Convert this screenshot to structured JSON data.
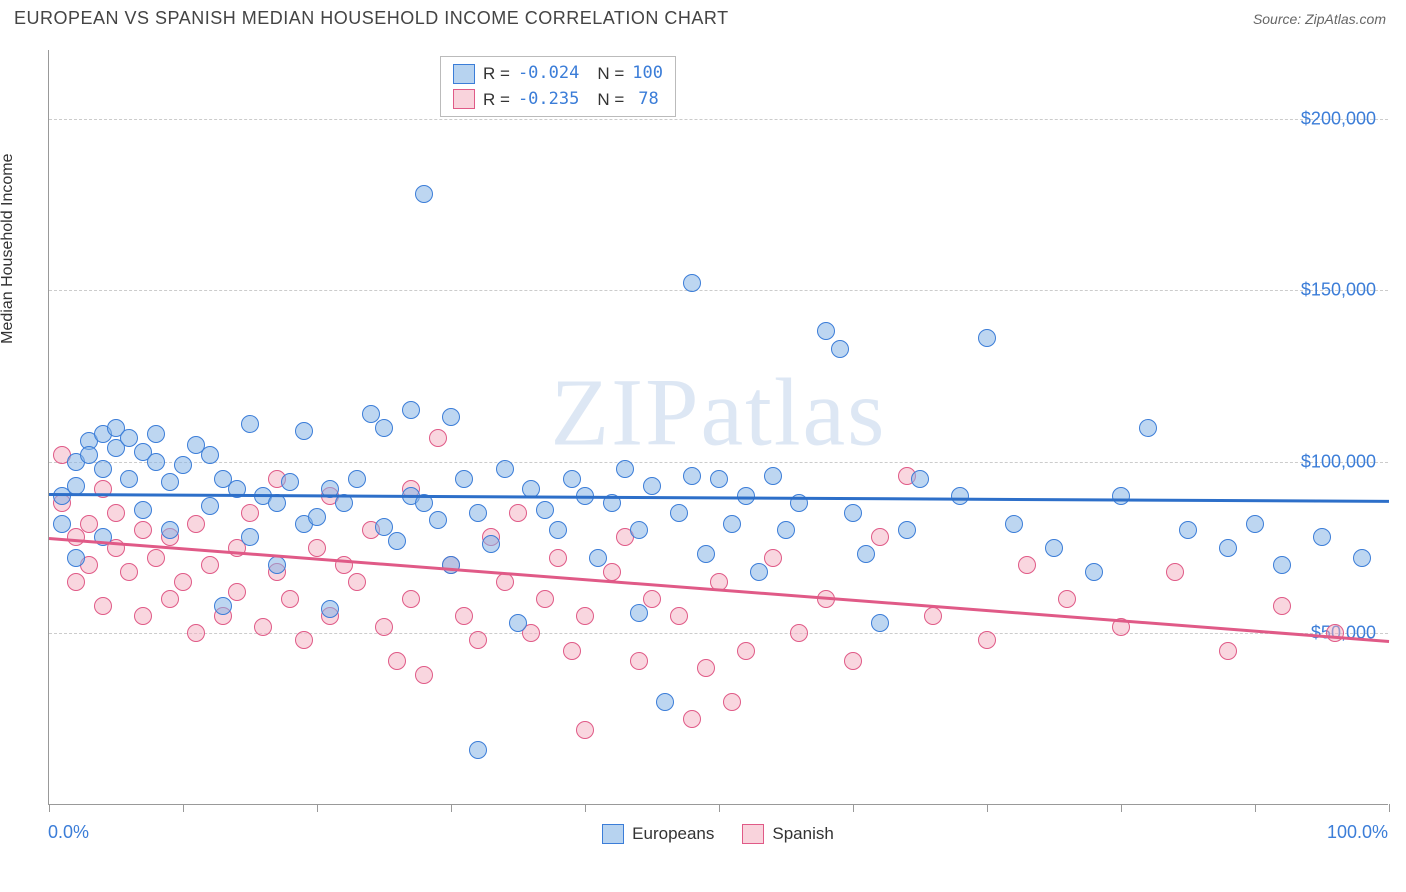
{
  "title": "EUROPEAN VS SPANISH MEDIAN HOUSEHOLD INCOME CORRELATION CHART",
  "source": "Source: ZipAtlas.com",
  "watermark": "ZIPatlas",
  "yaxis_title": "Median Household Income",
  "chart": {
    "type": "scatter",
    "xlim": [
      0,
      100
    ],
    "ylim": [
      0,
      220000
    ],
    "x_label_min": "0.0%",
    "x_label_max": "100.0%",
    "y_ticks": [
      50000,
      100000,
      150000,
      200000
    ],
    "y_tick_labels": [
      "$50,000",
      "$100,000",
      "$150,000",
      "$200,000"
    ],
    "x_tick_positions": [
      0,
      10,
      20,
      30,
      40,
      50,
      60,
      70,
      80,
      90,
      100
    ],
    "grid_color": "#cccccc",
    "background": "#ffffff",
    "marker_radius": 9,
    "series": [
      {
        "name": "Europeans",
        "color_fill": "rgba(135,181,230,0.55)",
        "color_stroke": "#3b7dd8",
        "R": "-0.024",
        "N": "100",
        "trend": {
          "y_at_x0": 91000,
          "y_at_x100": 89000
        },
        "points": [
          [
            1,
            82000
          ],
          [
            1,
            90000
          ],
          [
            2,
            93000
          ],
          [
            2,
            100000
          ],
          [
            2,
            72000
          ],
          [
            3,
            106000
          ],
          [
            3,
            102000
          ],
          [
            4,
            108000
          ],
          [
            4,
            98000
          ],
          [
            4,
            78000
          ],
          [
            5,
            110000
          ],
          [
            5,
            104000
          ],
          [
            6,
            107000
          ],
          [
            6,
            95000
          ],
          [
            7,
            103000
          ],
          [
            7,
            86000
          ],
          [
            8,
            100000
          ],
          [
            8,
            108000
          ],
          [
            9,
            94000
          ],
          [
            9,
            80000
          ],
          [
            10,
            99000
          ],
          [
            11,
            105000
          ],
          [
            12,
            102000
          ],
          [
            12,
            87000
          ],
          [
            13,
            95000
          ],
          [
            13,
            58000
          ],
          [
            14,
            92000
          ],
          [
            15,
            111000
          ],
          [
            15,
            78000
          ],
          [
            16,
            90000
          ],
          [
            17,
            88000
          ],
          [
            17,
            70000
          ],
          [
            18,
            94000
          ],
          [
            19,
            109000
          ],
          [
            19,
            82000
          ],
          [
            20,
            84000
          ],
          [
            21,
            92000
          ],
          [
            21,
            57000
          ],
          [
            22,
            88000
          ],
          [
            23,
            95000
          ],
          [
            24,
            114000
          ],
          [
            25,
            110000
          ],
          [
            25,
            81000
          ],
          [
            26,
            77000
          ],
          [
            27,
            115000
          ],
          [
            27,
            90000
          ],
          [
            28,
            178000
          ],
          [
            28,
            88000
          ],
          [
            29,
            83000
          ],
          [
            30,
            113000
          ],
          [
            30,
            70000
          ],
          [
            31,
            95000
          ],
          [
            32,
            85000
          ],
          [
            32,
            16000
          ],
          [
            33,
            76000
          ],
          [
            34,
            98000
          ],
          [
            35,
            53000
          ],
          [
            36,
            92000
          ],
          [
            37,
            86000
          ],
          [
            38,
            80000
          ],
          [
            39,
            95000
          ],
          [
            40,
            90000
          ],
          [
            41,
            72000
          ],
          [
            42,
            88000
          ],
          [
            43,
            98000
          ],
          [
            44,
            80000
          ],
          [
            44,
            56000
          ],
          [
            45,
            93000
          ],
          [
            46,
            30000
          ],
          [
            47,
            85000
          ],
          [
            48,
            96000
          ],
          [
            48,
            152000
          ],
          [
            49,
            73000
          ],
          [
            50,
            95000
          ],
          [
            51,
            82000
          ],
          [
            52,
            90000
          ],
          [
            53,
            68000
          ],
          [
            54,
            96000
          ],
          [
            55,
            80000
          ],
          [
            56,
            88000
          ],
          [
            58,
            138000
          ],
          [
            59,
            133000
          ],
          [
            60,
            85000
          ],
          [
            61,
            73000
          ],
          [
            62,
            53000
          ],
          [
            64,
            80000
          ],
          [
            65,
            95000
          ],
          [
            68,
            90000
          ],
          [
            70,
            136000
          ],
          [
            72,
            82000
          ],
          [
            75,
            75000
          ],
          [
            78,
            68000
          ],
          [
            80,
            90000
          ],
          [
            82,
            110000
          ],
          [
            85,
            80000
          ],
          [
            88,
            75000
          ],
          [
            90,
            82000
          ],
          [
            92,
            70000
          ],
          [
            95,
            78000
          ],
          [
            98,
            72000
          ]
        ]
      },
      {
        "name": "Spanish",
        "color_fill": "rgba(244,174,192,0.5)",
        "color_stroke": "#e05a87",
        "R": "-0.235",
        "N": "78",
        "trend": {
          "y_at_x0": 78000,
          "y_at_x100": 48000
        },
        "points": [
          [
            1,
            102000
          ],
          [
            1,
            88000
          ],
          [
            2,
            78000
          ],
          [
            2,
            65000
          ],
          [
            3,
            82000
          ],
          [
            3,
            70000
          ],
          [
            4,
            92000
          ],
          [
            4,
            58000
          ],
          [
            5,
            75000
          ],
          [
            5,
            85000
          ],
          [
            6,
            68000
          ],
          [
            7,
            80000
          ],
          [
            7,
            55000
          ],
          [
            8,
            72000
          ],
          [
            9,
            60000
          ],
          [
            9,
            78000
          ],
          [
            10,
            65000
          ],
          [
            11,
            82000
          ],
          [
            11,
            50000
          ],
          [
            12,
            70000
          ],
          [
            13,
            55000
          ],
          [
            14,
            75000
          ],
          [
            14,
            62000
          ],
          [
            15,
            85000
          ],
          [
            16,
            52000
          ],
          [
            17,
            95000
          ],
          [
            17,
            68000
          ],
          [
            18,
            60000
          ],
          [
            19,
            48000
          ],
          [
            20,
            75000
          ],
          [
            21,
            90000
          ],
          [
            21,
            55000
          ],
          [
            22,
            70000
          ],
          [
            23,
            65000
          ],
          [
            24,
            80000
          ],
          [
            25,
            52000
          ],
          [
            26,
            42000
          ],
          [
            27,
            92000
          ],
          [
            27,
            60000
          ],
          [
            28,
            38000
          ],
          [
            29,
            107000
          ],
          [
            30,
            70000
          ],
          [
            31,
            55000
          ],
          [
            32,
            48000
          ],
          [
            33,
            78000
          ],
          [
            34,
            65000
          ],
          [
            35,
            85000
          ],
          [
            36,
            50000
          ],
          [
            37,
            60000
          ],
          [
            38,
            72000
          ],
          [
            39,
            45000
          ],
          [
            40,
            55000
          ],
          [
            40,
            22000
          ],
          [
            42,
            68000
          ],
          [
            43,
            78000
          ],
          [
            44,
            42000
          ],
          [
            45,
            60000
          ],
          [
            47,
            55000
          ],
          [
            48,
            25000
          ],
          [
            49,
            40000
          ],
          [
            50,
            65000
          ],
          [
            51,
            30000
          ],
          [
            52,
            45000
          ],
          [
            54,
            72000
          ],
          [
            56,
            50000
          ],
          [
            58,
            60000
          ],
          [
            60,
            42000
          ],
          [
            62,
            78000
          ],
          [
            64,
            96000
          ],
          [
            66,
            55000
          ],
          [
            70,
            48000
          ],
          [
            73,
            70000
          ],
          [
            76,
            60000
          ],
          [
            80,
            52000
          ],
          [
            84,
            68000
          ],
          [
            88,
            45000
          ],
          [
            92,
            58000
          ],
          [
            96,
            50000
          ]
        ]
      }
    ]
  },
  "legend_bottom": [
    {
      "label": "Europeans",
      "swatch": "blue"
    },
    {
      "label": "Spanish",
      "swatch": "pink"
    }
  ]
}
